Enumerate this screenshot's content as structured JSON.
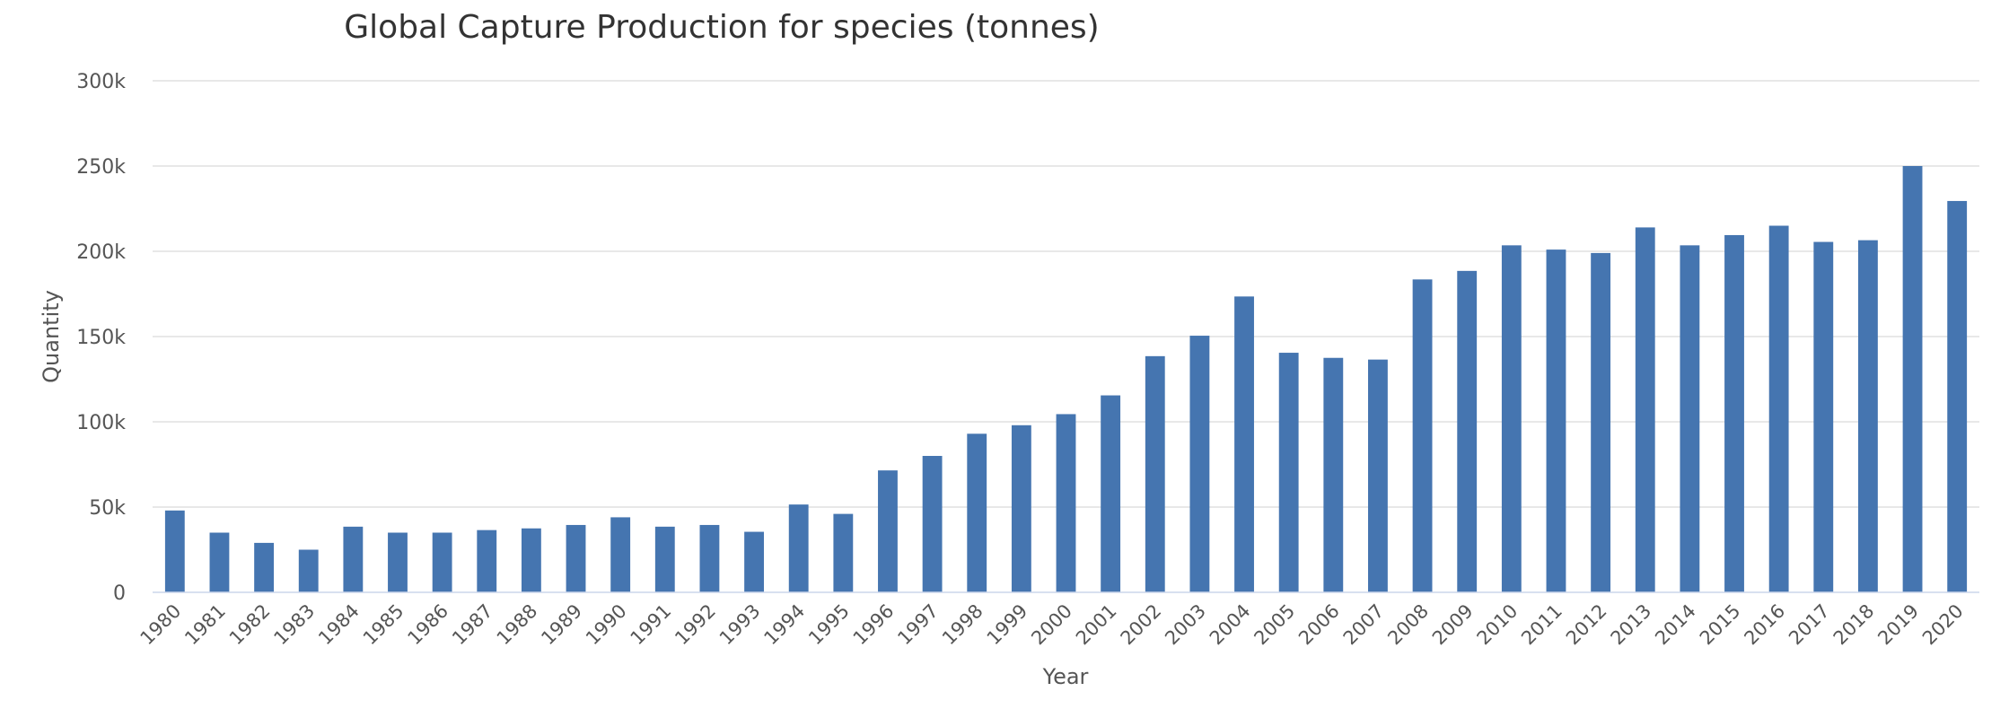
{
  "chart_data": {
    "type": "bar",
    "title": "Global Capture Production for species (tonnes)",
    "xlabel": "Year",
    "ylabel": "Quantity",
    "ylim": [
      0,
      300000
    ],
    "yticks": [
      0,
      50000,
      100000,
      150000,
      200000,
      250000,
      300000
    ],
    "ytick_labels": [
      "0",
      "50k",
      "100k",
      "150k",
      "200k",
      "250k",
      "300k"
    ],
    "grid": true,
    "legend": "none",
    "bar_color": "#4575b0",
    "categories": [
      "1980",
      "1981",
      "1982",
      "1983",
      "1984",
      "1985",
      "1986",
      "1987",
      "1988",
      "1989",
      "1990",
      "1991",
      "1992",
      "1993",
      "1994",
      "1995",
      "1996",
      "1997",
      "1998",
      "1999",
      "2000",
      "2001",
      "2002",
      "2003",
      "2004",
      "2005",
      "2006",
      "2007",
      "2008",
      "2009",
      "2010",
      "2011",
      "2012",
      "2013",
      "2014",
      "2015",
      "2016",
      "2017",
      "2018",
      "2019",
      "2020"
    ],
    "values": [
      48000,
      35000,
      29000,
      25000,
      38500,
      35000,
      35000,
      36500,
      37500,
      39500,
      44000,
      38500,
      39500,
      35500,
      51500,
      46000,
      71500,
      80000,
      93000,
      98000,
      104500,
      115500,
      138500,
      150500,
      173500,
      140500,
      137500,
      136500,
      183500,
      188500,
      203500,
      201000,
      199000,
      214000,
      203500,
      209500,
      215000,
      205500,
      206500,
      250000,
      229500
    ]
  }
}
